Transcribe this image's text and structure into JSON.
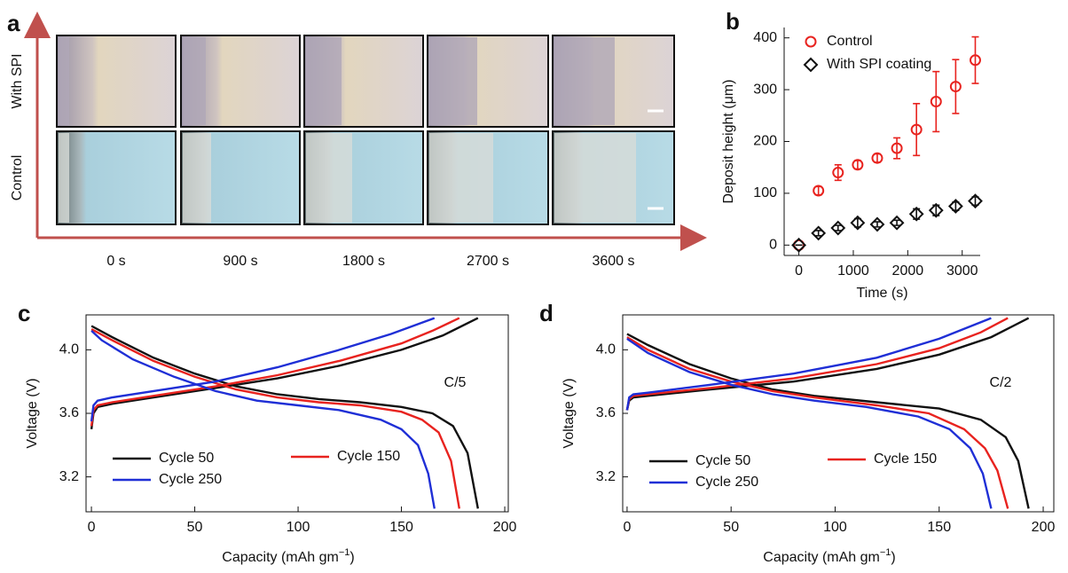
{
  "panel_a": {
    "label": "a",
    "rows": [
      "With SPI",
      "Control"
    ],
    "times": [
      "0 s",
      "900 s",
      "1800 s",
      "2700 s",
      "3600 s"
    ]
  },
  "chart_data": [
    {
      "type": "scatter",
      "label": "b",
      "xlabel": "Time (s)",
      "ylabel": "Deposit height (μm)",
      "x": [
        0,
        360,
        720,
        1080,
        1440,
        1800,
        2160,
        2520,
        2880,
        3240
      ],
      "xlim": [
        -270,
        3330
      ],
      "xticks": [
        0,
        1000,
        2000,
        3000
      ],
      "ylim": [
        -20,
        420
      ],
      "yticks": [
        0,
        100,
        200,
        300,
        400
      ],
      "legend": "upper left",
      "frame": false,
      "series": [
        {
          "name": "Control",
          "color": "#e8231f",
          "marker": "circle",
          "values": [
            0,
            105,
            140,
            155,
            168,
            187,
            223,
            277,
            306,
            357
          ],
          "errors": [
            0,
            8,
            15,
            8,
            8,
            20,
            50,
            58,
            52,
            45
          ]
        },
        {
          "name": "With SPI coating",
          "color": "#111111",
          "marker": "diamond",
          "values": [
            0,
            23,
            33,
            43,
            40,
            43,
            60,
            67,
            75,
            85
          ],
          "errors": [
            0,
            5,
            5,
            8,
            5,
            5,
            10,
            10,
            8,
            8
          ]
        }
      ]
    },
    {
      "type": "line",
      "label": "c",
      "annotation": "C/5",
      "xlabel": [
        "Capacity (mAh gm",
        "−1",
        ")"
      ],
      "ylabel": "Voltage (V)",
      "xlim": [
        -2.6,
        201.7
      ],
      "xticks": [
        0,
        50,
        100,
        150,
        200
      ],
      "ylim": [
        2.98,
        4.22
      ],
      "yticks": [
        3.2,
        3.6,
        {
          "value": 4,
          "label": "4.0"
        }
      ],
      "frame": true,
      "series": [
        {
          "name": "Cycle 50",
          "color": "#111111",
          "charge": {
            "x": [
              0,
              1,
              3,
              10,
              30,
              60,
              90,
              120,
              150,
              170,
              187
            ],
            "y": [
              3.5,
              3.6,
              3.64,
              3.66,
              3.7,
              3.76,
              3.82,
              3.9,
              4.0,
              4.09,
              4.2
            ]
          },
          "discharge": {
            "x": [
              0,
              10,
              30,
              50,
              70,
              90,
              110,
              130,
              150,
              165,
              175,
              182,
              187
            ],
            "y": [
              4.15,
              4.08,
              3.95,
              3.85,
              3.77,
              3.72,
              3.69,
              3.67,
              3.64,
              3.6,
              3.52,
              3.35,
              3.0
            ]
          }
        },
        {
          "name": "Cycle 150",
          "color": "#e8231f",
          "charge": {
            "x": [
              0,
              1,
              3,
              10,
              30,
              60,
              90,
              120,
              150,
              165,
              178
            ],
            "y": [
              3.52,
              3.62,
              3.65,
              3.67,
              3.71,
              3.77,
              3.84,
              3.93,
              4.04,
              4.12,
              4.2
            ]
          },
          "discharge": {
            "x": [
              0,
              10,
              30,
              50,
              70,
              90,
              110,
              130,
              150,
              160,
              168,
              174,
              178
            ],
            "y": [
              4.13,
              4.06,
              3.93,
              3.83,
              3.75,
              3.7,
              3.67,
              3.65,
              3.61,
              3.56,
              3.48,
              3.3,
              3.0
            ]
          }
        },
        {
          "name": "Cycle 250",
          "color": "#1f2fd6",
          "charge": {
            "x": [
              0,
              1,
              3,
              10,
              30,
              60,
              90,
              120,
              145,
              166
            ],
            "y": [
              3.55,
              3.65,
              3.68,
              3.7,
              3.74,
              3.8,
              3.89,
              4.0,
              4.1,
              4.2
            ]
          },
          "discharge": {
            "x": [
              0,
              5,
              20,
              40,
              60,
              80,
              100,
              120,
              140,
              150,
              158,
              163,
              166
            ],
            "y": [
              4.12,
              4.06,
              3.94,
              3.83,
              3.74,
              3.68,
              3.65,
              3.62,
              3.56,
              3.5,
              3.4,
              3.22,
              3.0
            ]
          }
        }
      ]
    },
    {
      "type": "line",
      "label": "d",
      "annotation": "C/2",
      "xlabel": [
        "Capacity (mAh gm",
        "−1",
        ")"
      ],
      "ylabel": "Voltage (V)",
      "xlim": [
        -2.1,
        205.1
      ],
      "xticks": [
        0,
        50,
        100,
        150,
        200
      ],
      "ylim": [
        2.98,
        4.22
      ],
      "yticks": [
        3.2,
        3.6,
        {
          "value": 4,
          "label": "4.0"
        }
      ],
      "frame": true,
      "series": [
        {
          "name": "Cycle 50",
          "color": "#111111",
          "charge": {
            "x": [
              0,
              1,
              3,
              10,
              40,
              80,
              120,
              150,
              175,
              193
            ],
            "y": [
              3.62,
              3.68,
              3.7,
              3.71,
              3.75,
              3.8,
              3.88,
              3.97,
              4.08,
              4.2
            ]
          },
          "discharge": {
            "x": [
              0,
              10,
              30,
              50,
              70,
              90,
              120,
              150,
              170,
              182,
              188,
              193
            ],
            "y": [
              4.1,
              4.03,
              3.91,
              3.82,
              3.75,
              3.71,
              3.67,
              3.63,
              3.56,
              3.45,
              3.3,
              3.0
            ]
          }
        },
        {
          "name": "Cycle 150",
          "color": "#e8231f",
          "charge": {
            "x": [
              0,
              1,
              3,
              10,
              40,
              80,
              120,
              150,
              170,
              183
            ],
            "y": [
              3.62,
              3.69,
              3.71,
              3.72,
              3.76,
              3.82,
              3.91,
              4.01,
              4.11,
              4.2
            ]
          },
          "discharge": {
            "x": [
              0,
              10,
              30,
              50,
              70,
              90,
              120,
              145,
              162,
              172,
              178,
              183
            ],
            "y": [
              4.08,
              4.0,
              3.88,
              3.8,
              3.74,
              3.7,
              3.65,
              3.6,
              3.5,
              3.38,
              3.24,
              3.0
            ]
          }
        },
        {
          "name": "Cycle 250",
          "color": "#1f2fd6",
          "charge": {
            "x": [
              0,
              1,
              3,
              10,
              40,
              80,
              120,
              150,
              175
            ],
            "y": [
              3.62,
              3.7,
              3.72,
              3.73,
              3.78,
              3.85,
              3.95,
              4.07,
              4.2
            ]
          },
          "discharge": {
            "x": [
              0,
              10,
              30,
              50,
              70,
              90,
              115,
              140,
              155,
              165,
              171,
              175
            ],
            "y": [
              4.07,
              3.98,
              3.86,
              3.78,
              3.72,
              3.68,
              3.64,
              3.58,
              3.5,
              3.38,
              3.22,
              3.0
            ]
          }
        }
      ]
    }
  ]
}
